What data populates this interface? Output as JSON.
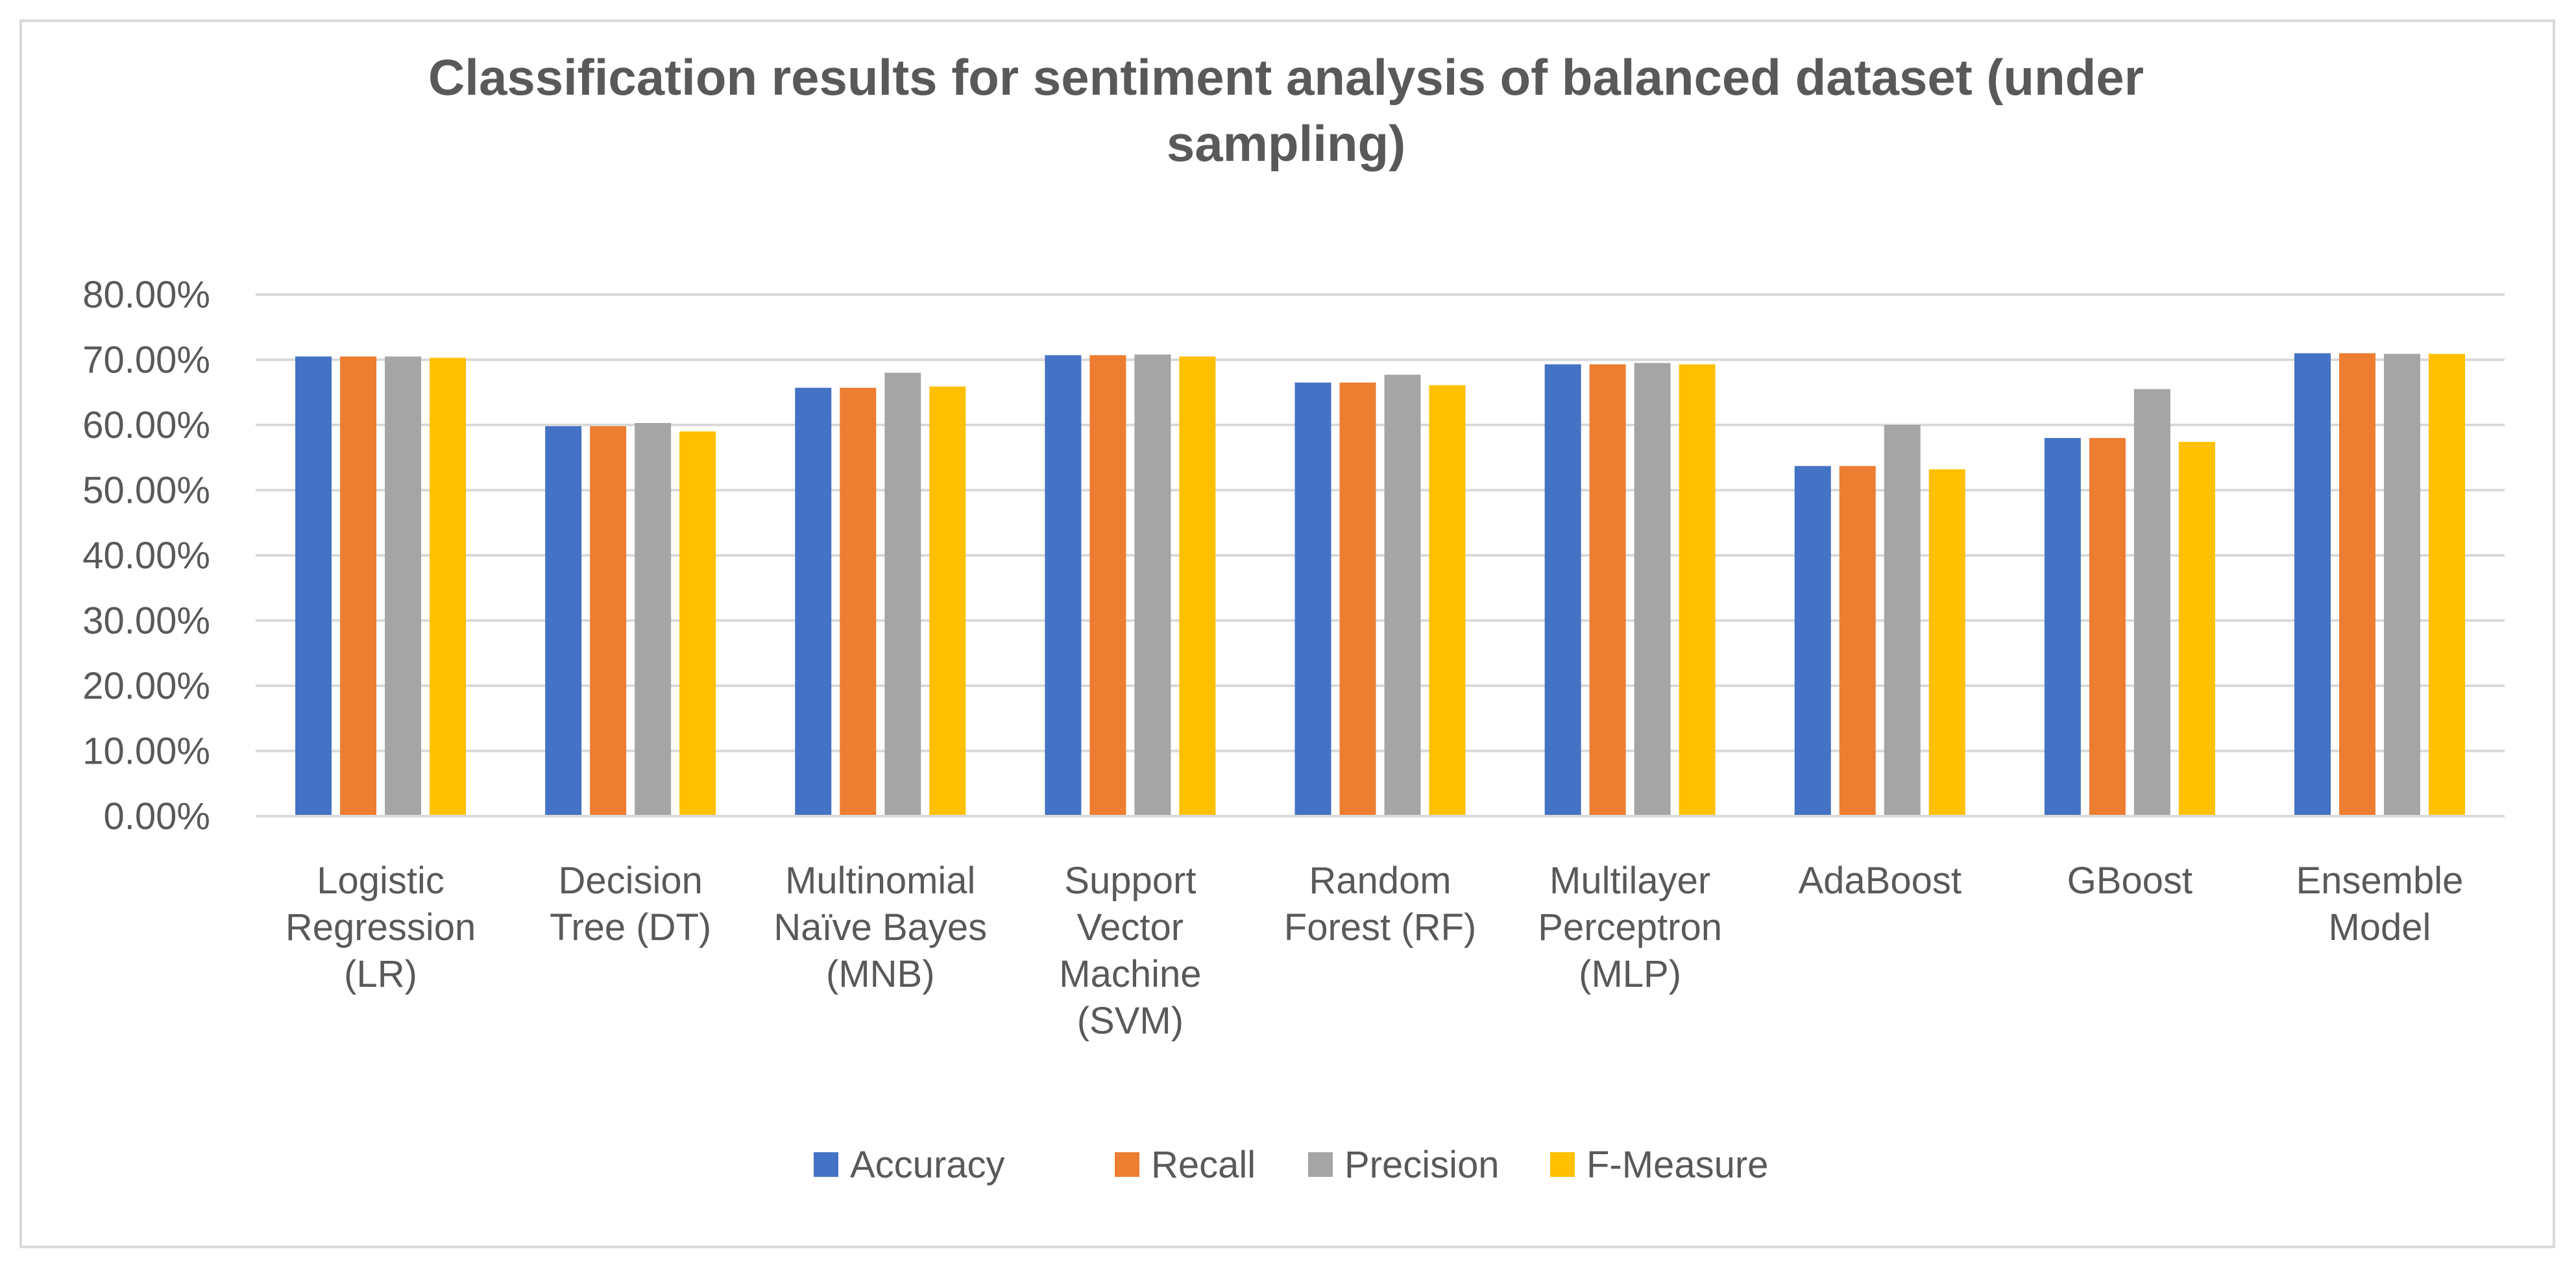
{
  "chart_data": {
    "type": "bar",
    "title": "Classification results for sentiment analysis of balanced dataset (under sampling)",
    "title_lines": [
      "Classification results for sentiment analysis of balanced dataset (under",
      "sampling)"
    ],
    "xlabel": "",
    "ylabel": "",
    "ylim": [
      0,
      0.8
    ],
    "yticks": [
      0,
      0.1,
      0.2,
      0.3,
      0.4,
      0.5,
      0.6,
      0.7,
      0.8
    ],
    "ytick_labels": [
      "0.00%",
      "10.00%",
      "20.00%",
      "30.00%",
      "40.00%",
      "50.00%",
      "60.00%",
      "70.00%",
      "80.00%"
    ],
    "grid": true,
    "legend_position": "bottom",
    "categories": [
      "Logistic Regression (LR)",
      "Decision Tree (DT)",
      "Multinomial Naïve Bayes (MNB)",
      "Support Vector Machine (SVM)",
      "Random Forest (RF)",
      "Multilayer Perceptron (MLP)",
      "AdaBoost",
      "GBoost",
      "Ensemble Model"
    ],
    "category_label_lines": [
      [
        "Logistic",
        "Regression",
        "(LR)"
      ],
      [
        "Decision",
        "Tree (DT)"
      ],
      [
        "Multinomial",
        "Naïve Bayes",
        "(MNB)"
      ],
      [
        "Support",
        "Vector",
        "Machine",
        "(SVM)"
      ],
      [
        "Random",
        "Forest (RF)"
      ],
      [
        "Multilayer",
        "Perceptron",
        "(MLP)"
      ],
      [
        "AdaBoost"
      ],
      [
        "GBoost"
      ],
      [
        "Ensemble",
        "Model"
      ]
    ],
    "series": [
      {
        "name": "Accuracy",
        "color": "#4472c4",
        "values": [
          0.705,
          0.598,
          0.657,
          0.707,
          0.665,
          0.693,
          0.537,
          0.58,
          0.71
        ]
      },
      {
        "name": "Recall",
        "color": "#ed7d31",
        "values": [
          0.705,
          0.598,
          0.657,
          0.707,
          0.665,
          0.693,
          0.537,
          0.58,
          0.71
        ]
      },
      {
        "name": "Precision",
        "color": "#a5a5a5",
        "values": [
          0.705,
          0.603,
          0.68,
          0.708,
          0.677,
          0.695,
          0.6,
          0.655,
          0.709
        ]
      },
      {
        "name": "F-Measure",
        "color": "#ffc000",
        "values": [
          0.703,
          0.59,
          0.659,
          0.705,
          0.661,
          0.693,
          0.532,
          0.574,
          0.709
        ]
      }
    ]
  }
}
